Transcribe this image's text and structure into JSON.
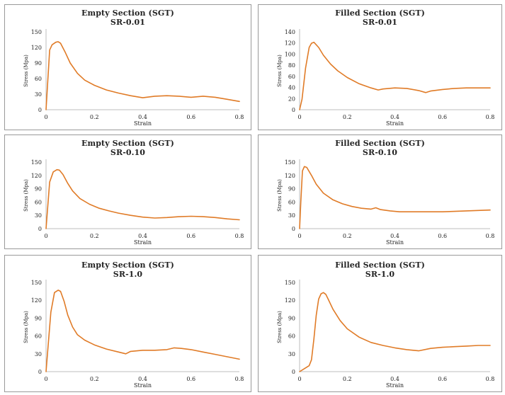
{
  "style": {
    "line_color": "#e07b27",
    "axis_color": "#bdbdbd",
    "text_color": "#222222",
    "panel_border": "#9a9a9a"
  },
  "chart_data": [
    {
      "type": "line",
      "title": "Empty Section (SGT)",
      "subtitle": "SR-0.01",
      "xlabel": "Strain",
      "ylabel": "Stress (Mpa)",
      "xlim": [
        0,
        0.8
      ],
      "ylim": [
        0,
        150
      ],
      "xticks": [
        "0",
        "0.2",
        "0.4",
        "0.6",
        "0.8"
      ],
      "yticks": [
        "0",
        "30",
        "60",
        "90",
        "120",
        "150"
      ],
      "grid": false,
      "series": [
        {
          "x": [
            0,
            0.015,
            0.025,
            0.04,
            0.05,
            0.06,
            0.08,
            0.1,
            0.13,
            0.16,
            0.2,
            0.25,
            0.3,
            0.35,
            0.4,
            0.45,
            0.5,
            0.55,
            0.6,
            0.65,
            0.7,
            0.75,
            0.8
          ],
          "y": [
            0,
            115,
            125,
            130,
            131,
            128,
            110,
            90,
            70,
            57,
            47,
            38,
            32,
            27,
            23,
            26,
            27,
            26,
            24,
            26,
            24,
            20,
            16
          ]
        }
      ]
    },
    {
      "type": "line",
      "title": "Filled Section (SGT)",
      "subtitle": "SR-0.01",
      "xlabel": "Strain",
      "ylabel": "Stress (Mpa)",
      "xlim": [
        0,
        0.8
      ],
      "ylim": [
        0,
        150
      ],
      "xticks": [
        "0",
        "0.2",
        "0.4",
        "0.6",
        "0.8"
      ],
      "yticks": [
        "0",
        "20",
        "40",
        "60",
        "80",
        "100",
        "120",
        "140"
      ],
      "grid": false,
      "series": [
        {
          "x": [
            0,
            0.01,
            0.025,
            0.04,
            0.05,
            0.06,
            0.08,
            0.1,
            0.13,
            0.16,
            0.2,
            0.25,
            0.3,
            0.33,
            0.35,
            0.4,
            0.45,
            0.5,
            0.53,
            0.55,
            0.6,
            0.65,
            0.7,
            0.75,
            0.8
          ],
          "y": [
            0,
            20,
            80,
            120,
            128,
            130,
            120,
            105,
            88,
            75,
            62,
            50,
            42,
            38,
            40,
            42,
            41,
            37,
            33,
            36,
            39,
            41,
            42,
            42,
            42
          ]
        }
      ]
    },
    {
      "type": "line",
      "title": "Empty Section (SGT)",
      "subtitle": "SR-0.10",
      "xlabel": "Strain",
      "ylabel": "Stress (Mpa)",
      "xlim": [
        0,
        0.8
      ],
      "ylim": [
        0,
        150
      ],
      "xticks": [
        "0",
        "0.2",
        "0.4",
        "0.6",
        "0.8"
      ],
      "yticks": [
        "0",
        "30",
        "60",
        "90",
        "120",
        "150"
      ],
      "grid": false,
      "series": [
        {
          "x": [
            0,
            0.015,
            0.03,
            0.045,
            0.055,
            0.07,
            0.09,
            0.11,
            0.14,
            0.18,
            0.22,
            0.26,
            0.3,
            0.35,
            0.4,
            0.45,
            0.5,
            0.55,
            0.6,
            0.65,
            0.7,
            0.75,
            0.8
          ],
          "y": [
            0,
            105,
            128,
            133,
            132,
            122,
            102,
            85,
            68,
            55,
            46,
            40,
            35,
            30,
            26,
            24,
            25,
            27,
            28,
            27,
            25,
            22,
            20
          ]
        }
      ]
    },
    {
      "type": "line",
      "title": "Filled Section (SGT)",
      "subtitle": "SR-0.10",
      "xlabel": "Strain",
      "ylabel": "Stress (Mpa)",
      "xlim": [
        0,
        0.8
      ],
      "ylim": [
        0,
        150
      ],
      "xticks": [
        "0",
        "0.2",
        "0.4",
        "0.6",
        "0.8"
      ],
      "yticks": [
        "0",
        "30",
        "60",
        "90",
        "120",
        "150"
      ],
      "grid": false,
      "series": [
        {
          "x": [
            0,
            0.005,
            0.012,
            0.02,
            0.03,
            0.05,
            0.07,
            0.1,
            0.14,
            0.18,
            0.22,
            0.26,
            0.3,
            0.32,
            0.34,
            0.38,
            0.42,
            0.46,
            0.5,
            0.55,
            0.6,
            0.65,
            0.7,
            0.75,
            0.8
          ],
          "y": [
            0,
            60,
            130,
            140,
            138,
            120,
            100,
            80,
            65,
            56,
            50,
            46,
            44,
            47,
            43,
            40,
            38,
            38,
            38,
            38,
            38,
            39,
            40,
            41,
            42
          ]
        }
      ]
    },
    {
      "type": "line",
      "title": "Empty Section (SGT)",
      "subtitle": "SR-1.0",
      "xlabel": "Strain",
      "ylabel": "Stress (Mpa)",
      "xlim": [
        0,
        0.8
      ],
      "ylim": [
        0,
        150
      ],
      "xticks": [
        "0",
        "0.2",
        "0.4",
        "0.6",
        "0.8"
      ],
      "yticks": [
        "0",
        "30",
        "60",
        "90",
        "120",
        "150"
      ],
      "grid": false,
      "series": [
        {
          "x": [
            0,
            0.02,
            0.035,
            0.05,
            0.06,
            0.075,
            0.09,
            0.11,
            0.13,
            0.16,
            0.2,
            0.25,
            0.3,
            0.33,
            0.35,
            0.4,
            0.45,
            0.5,
            0.53,
            0.56,
            0.6,
            0.65,
            0.7,
            0.75,
            0.8
          ],
          "y": [
            0,
            100,
            133,
            137,
            135,
            118,
            95,
            75,
            62,
            53,
            45,
            38,
            33,
            30,
            34,
            36,
            36,
            37,
            40,
            39,
            37,
            33,
            29,
            25,
            21
          ]
        }
      ]
    },
    {
      "type": "line",
      "title": "Filled Section (SGT)",
      "subtitle": "SR-1.0",
      "xlabel": "Strain",
      "ylabel": "Stress (Mpa)",
      "xlim": [
        0,
        0.8
      ],
      "ylim": [
        0,
        150
      ],
      "xticks": [
        "0",
        "0.2",
        "0.4",
        "0.6",
        "0.8"
      ],
      "yticks": [
        "0",
        "30",
        "60",
        "90",
        "120",
        "150"
      ],
      "grid": false,
      "series": [
        {
          "x": [
            0,
            0.02,
            0.04,
            0.05,
            0.06,
            0.07,
            0.08,
            0.09,
            0.1,
            0.11,
            0.12,
            0.14,
            0.17,
            0.2,
            0.25,
            0.3,
            0.35,
            0.4,
            0.45,
            0.5,
            0.55,
            0.6,
            0.65,
            0.7,
            0.75,
            0.8
          ],
          "y": [
            0,
            5,
            10,
            20,
            55,
            95,
            122,
            131,
            133,
            130,
            122,
            105,
            86,
            72,
            58,
            49,
            44,
            40,
            37,
            35,
            39,
            41,
            42,
            43,
            44,
            44
          ]
        }
      ]
    }
  ]
}
